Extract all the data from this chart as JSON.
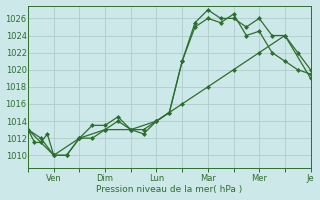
{
  "background_color": "#cce8e8",
  "grid_color": "#b0cccc",
  "line_color": "#2d6e2d",
  "marker_color": "#2d6e2d",
  "xlabel": "Pression niveau de la mer( hPa )",
  "ylim": [
    1008.5,
    1027.5
  ],
  "ytick_values": [
    1010,
    1012,
    1014,
    1016,
    1018,
    1020,
    1022,
    1024,
    1026
  ],
  "xlim": [
    0,
    11
  ],
  "xtick_positions": [
    0,
    1,
    2,
    3,
    4,
    5,
    6,
    7,
    8,
    9,
    10,
    11
  ],
  "xtick_labels": [
    "",
    "Ven",
    "",
    "Dim",
    "",
    "Lun",
    "",
    "Mar",
    "",
    "Mer",
    "",
    "Je"
  ],
  "series1_x": [
    0.0,
    0.25,
    0.5,
    0.75,
    1.0,
    1.5,
    2.0,
    2.5,
    3.0,
    3.5,
    4.0,
    4.5,
    5.0,
    5.5,
    6.0,
    6.5,
    7.0,
    7.5,
    8.0,
    8.5,
    9.0,
    9.5,
    10.0,
    10.5,
    11.0
  ],
  "series1_y": [
    1013.0,
    1011.5,
    1011.5,
    1012.5,
    1010.0,
    1010.0,
    1012.0,
    1012.0,
    1013.0,
    1014.0,
    1013.0,
    1012.5,
    1014.0,
    1015.0,
    1021.0,
    1025.5,
    1027.0,
    1026.0,
    1026.0,
    1025.0,
    1026.0,
    1024.0,
    1024.0,
    1022.0,
    1020.0
  ],
  "series2_x": [
    0.0,
    0.5,
    1.0,
    1.5,
    2.0,
    2.5,
    3.0,
    3.5,
    4.0,
    4.5,
    5.0,
    5.5,
    6.0,
    6.5,
    7.0,
    7.5,
    8.0,
    8.5,
    9.0,
    9.5,
    10.0,
    10.5,
    11.0
  ],
  "series2_y": [
    1013.0,
    1012.0,
    1010.0,
    1010.0,
    1012.0,
    1013.5,
    1013.5,
    1014.5,
    1013.0,
    1013.0,
    1014.0,
    1015.0,
    1021.0,
    1025.0,
    1026.0,
    1025.5,
    1026.5,
    1024.0,
    1024.5,
    1022.0,
    1021.0,
    1020.0,
    1019.5
  ],
  "series3_x": [
    0.0,
    1.0,
    2.0,
    3.0,
    4.0,
    5.0,
    6.0,
    7.0,
    8.0,
    9.0,
    10.0,
    11.0
  ],
  "series3_y": [
    1013.0,
    1010.0,
    1012.0,
    1013.0,
    1013.0,
    1014.0,
    1016.0,
    1018.0,
    1020.0,
    1022.0,
    1024.0,
    1019.0
  ]
}
